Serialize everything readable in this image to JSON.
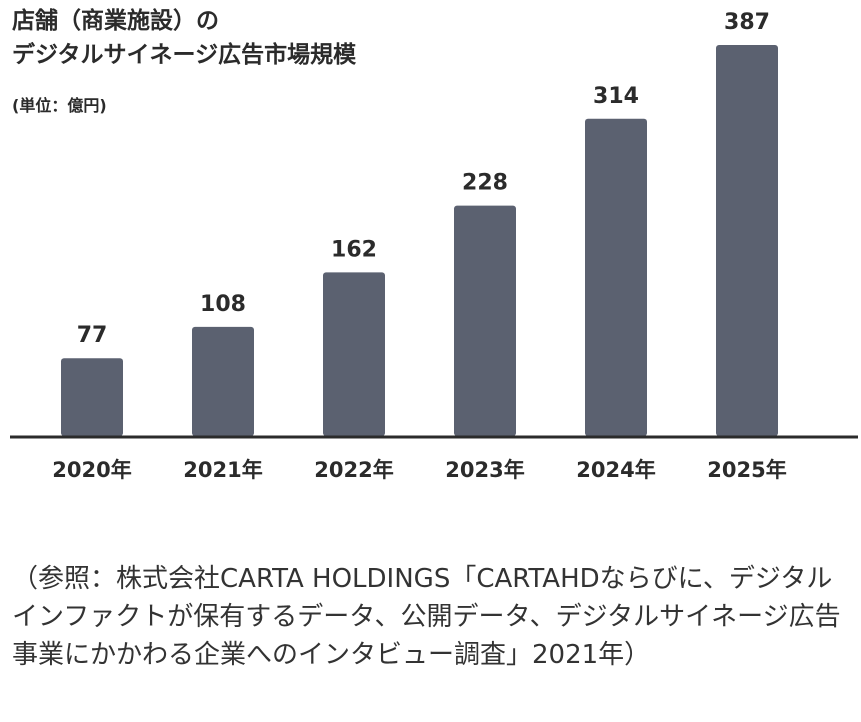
{
  "chart_data": {
    "type": "bar",
    "title_line1": "店舗（商業施設）の",
    "title_line2": "デジタルサイネージ広告市場規模",
    "unit_label": "(単位：億円)",
    "categories": [
      "2020年",
      "2021年",
      "2022年",
      "2023年",
      "2024年",
      "2025年"
    ],
    "values": [
      77,
      108,
      162,
      228,
      314,
      387
    ],
    "value_labels": [
      "77",
      "108",
      "162",
      "228",
      "314",
      "387"
    ],
    "ylim": [
      0,
      387
    ],
    "grid": false,
    "bar_color": "#5b6170",
    "axis_color": "#2b2b2b"
  },
  "caption": "（参照：株式会社CARTA HOLDINGS「CARTAHDならびに、デジタルインファクトが保有するデータ、公開データ、デジタルサイネージ広告事業にかかわる企業へのインタビュー調査」2021年）"
}
